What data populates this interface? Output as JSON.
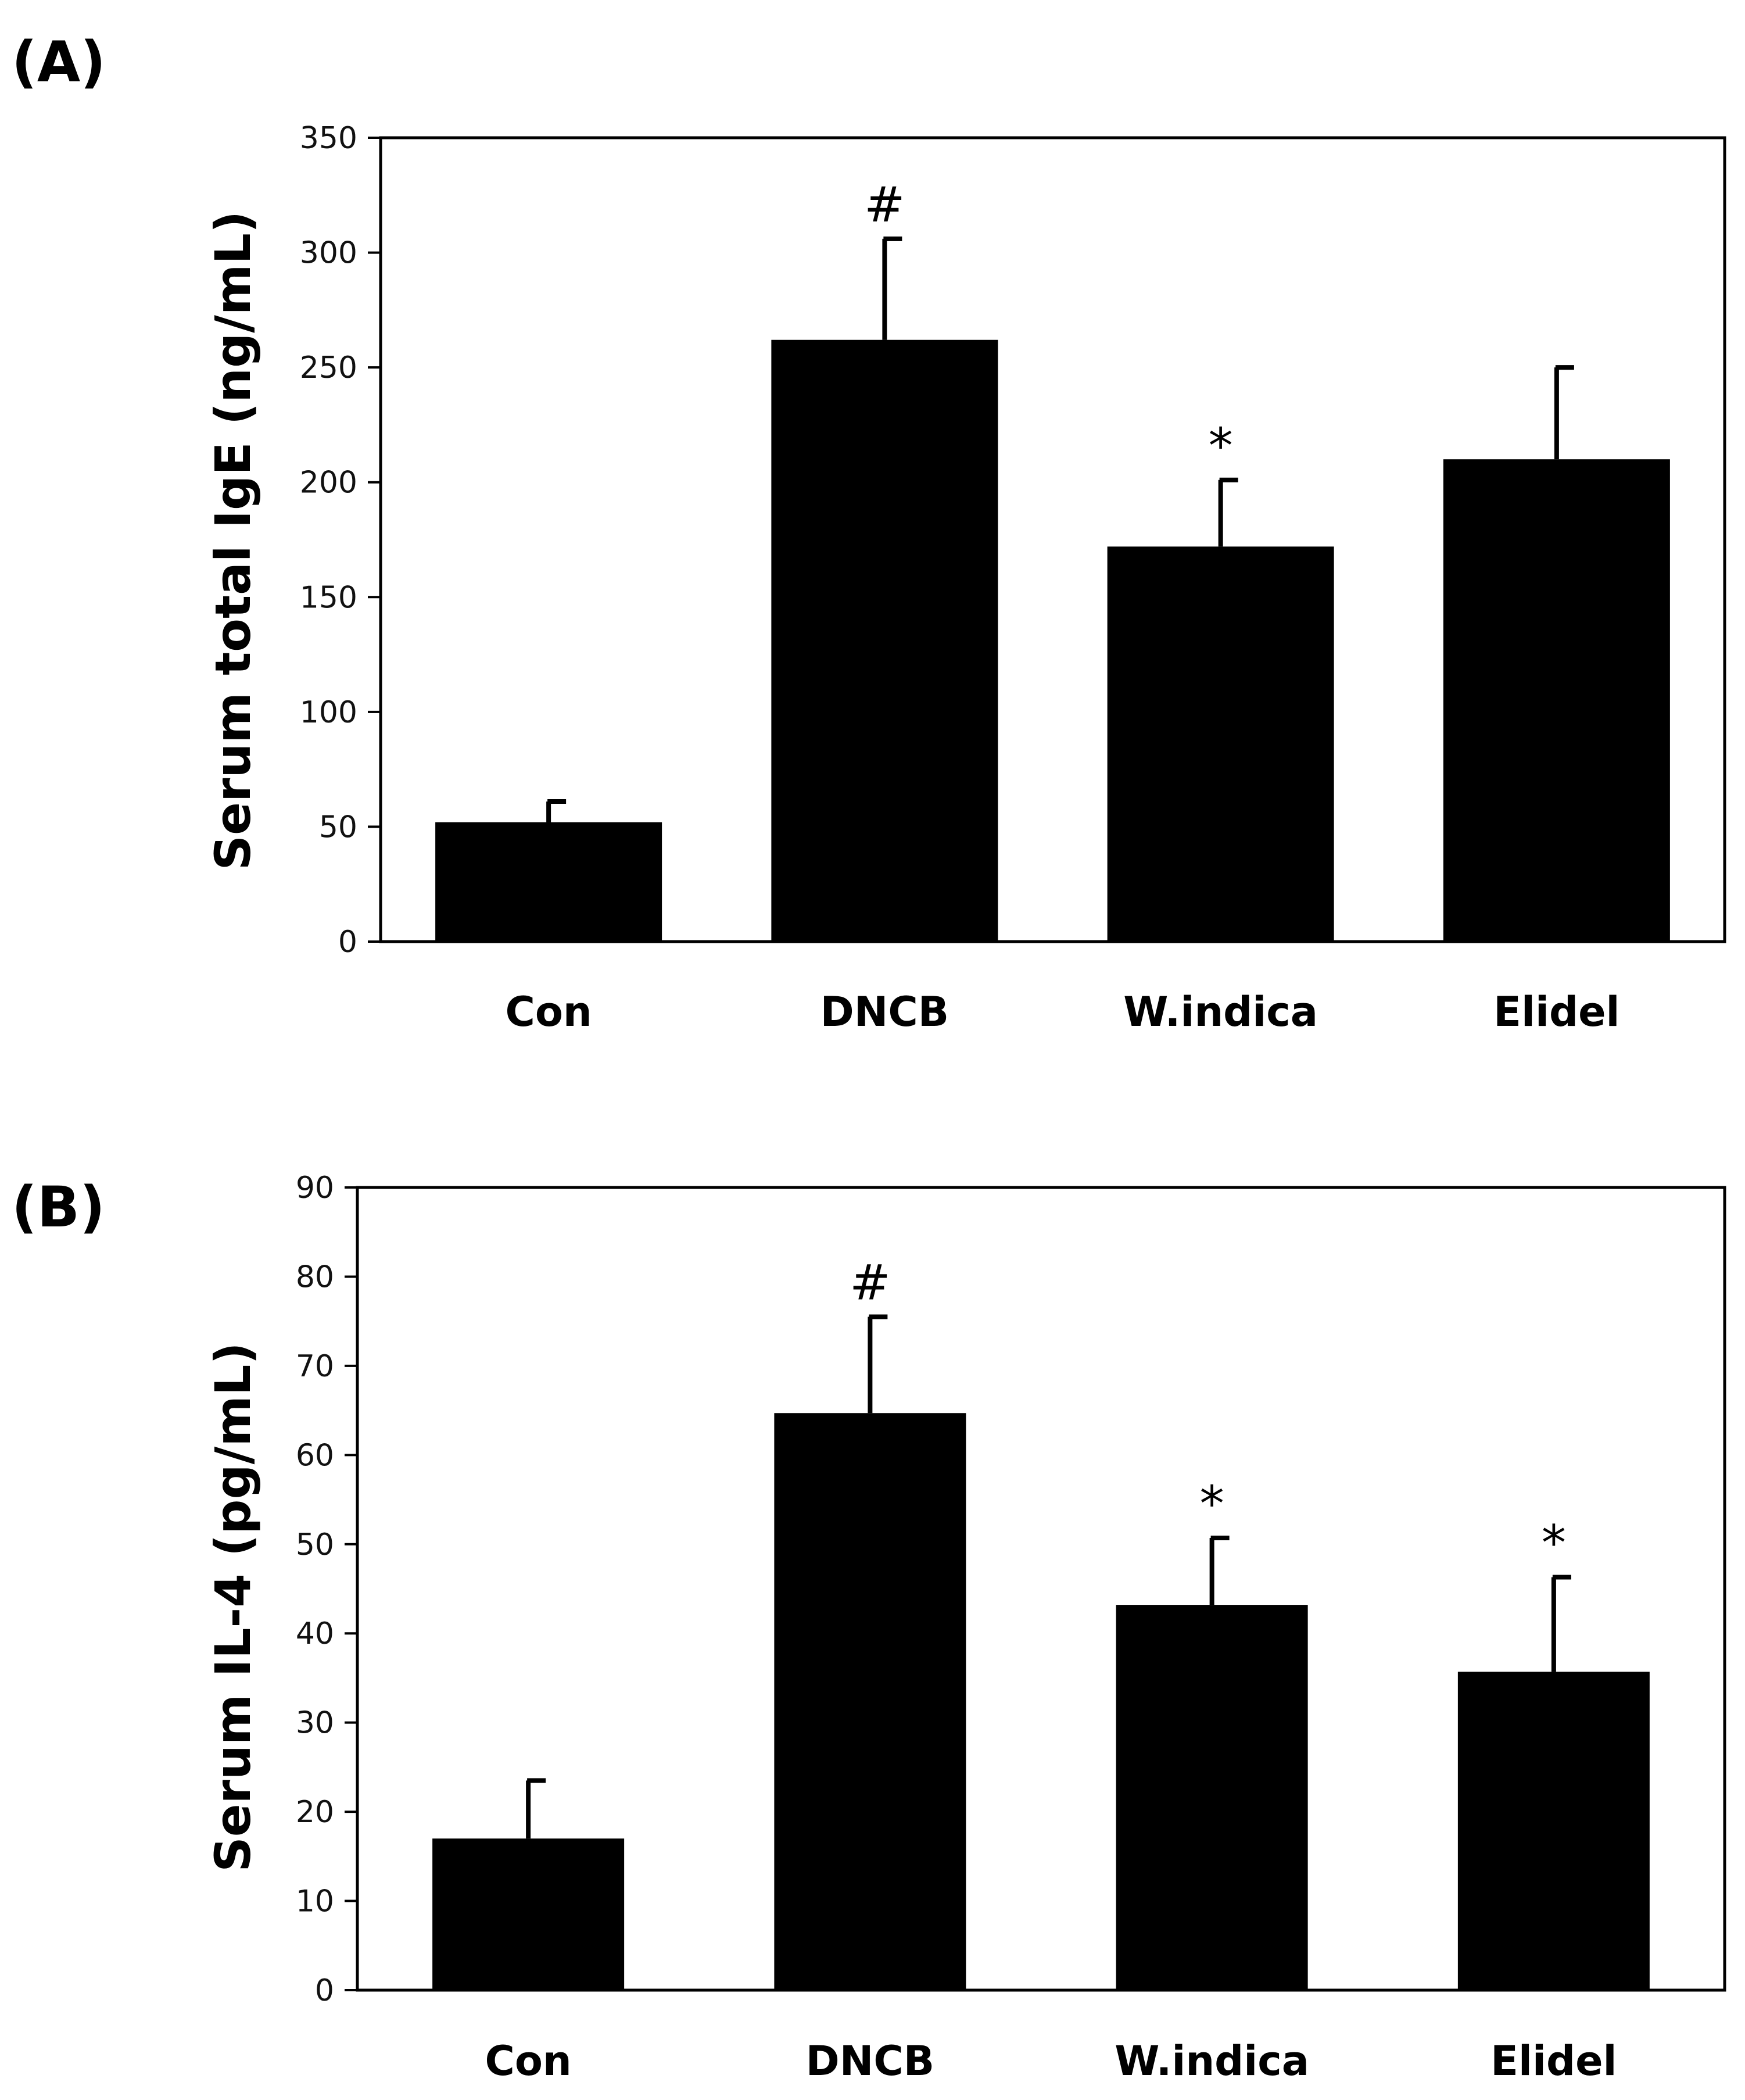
{
  "colors": {
    "bar": "#000000",
    "axis": "#000000",
    "background": "#ffffff"
  },
  "chart_data": [
    {
      "type": "bar",
      "panel_label": "(A)",
      "title": "",
      "xlabel": "",
      "ylabel": "Serum total IgE (ng/mL)",
      "ylim": [
        0,
        350
      ],
      "yticks": [
        "0",
        "50",
        "100",
        "150",
        "200",
        "250",
        "300",
        "350"
      ],
      "categories": [
        "Con",
        "DNCB",
        "W.indica",
        "Elidel"
      ],
      "series": [
        {
          "name": "Serum total IgE",
          "values": [
            52,
            262,
            172,
            210
          ]
        }
      ],
      "errors": [
        9,
        44,
        29,
        40
      ],
      "annotations": [
        "",
        "#",
        "*",
        ""
      ],
      "grid": false,
      "legend": "none"
    },
    {
      "type": "bar",
      "panel_label": "(B)",
      "title": "",
      "xlabel": "",
      "ylabel": "Serum IL-4 (pg/mL)",
      "ylim": [
        0,
        90
      ],
      "yticks": [
        "0",
        "10",
        "20",
        "30",
        "40",
        "50",
        "60",
        "70",
        "80",
        "90"
      ],
      "categories": [
        "Con",
        "DNCB",
        "W.indica",
        "Elidel"
      ],
      "series": [
        {
          "name": "Serum IL-4",
          "values": [
            17,
            64.7,
            43.2,
            35.7
          ]
        }
      ],
      "errors": [
        6.5,
        10.8,
        7.5,
        10.6
      ],
      "annotations": [
        "",
        "#",
        "*",
        "*"
      ],
      "grid": false,
      "legend": "none"
    }
  ]
}
